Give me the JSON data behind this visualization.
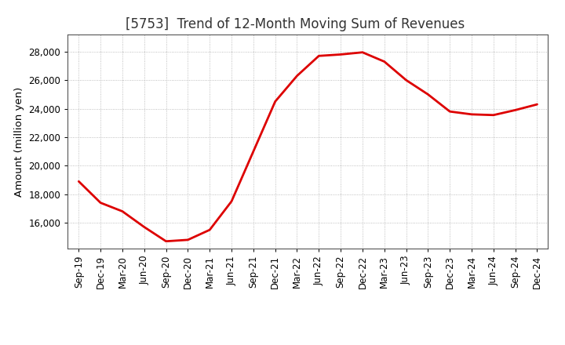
{
  "title": "[5753]  Trend of 12-Month Moving Sum of Revenues",
  "ylabel": "Amount (million yen)",
  "line_color": "#dd0000",
  "bg_color": "#ffffff",
  "plot_bg_color": "#ffffff",
  "grid_color": "#999999",
  "x_labels": [
    "Sep-19",
    "Dec-19",
    "Mar-20",
    "Jun-20",
    "Sep-20",
    "Dec-20",
    "Mar-21",
    "Jun-21",
    "Sep-21",
    "Dec-21",
    "Mar-22",
    "Jun-22",
    "Sep-22",
    "Dec-22",
    "Mar-23",
    "Jun-23",
    "Sep-23",
    "Dec-23",
    "Mar-24",
    "Jun-24",
    "Sep-24",
    "Dec-24"
  ],
  "y_values": [
    18900,
    17400,
    16800,
    15700,
    14700,
    14800,
    15500,
    17500,
    21000,
    24500,
    26300,
    27700,
    27800,
    27950,
    27300,
    26000,
    25000,
    23800,
    23600,
    23550,
    23900,
    24300
  ],
  "ylim": [
    14200,
    29200
  ],
  "yticks": [
    16000,
    18000,
    20000,
    22000,
    24000,
    26000,
    28000
  ],
  "line_width": 2.0,
  "title_fontsize": 12,
  "tick_fontsize": 8.5,
  "ylabel_fontsize": 9.5
}
